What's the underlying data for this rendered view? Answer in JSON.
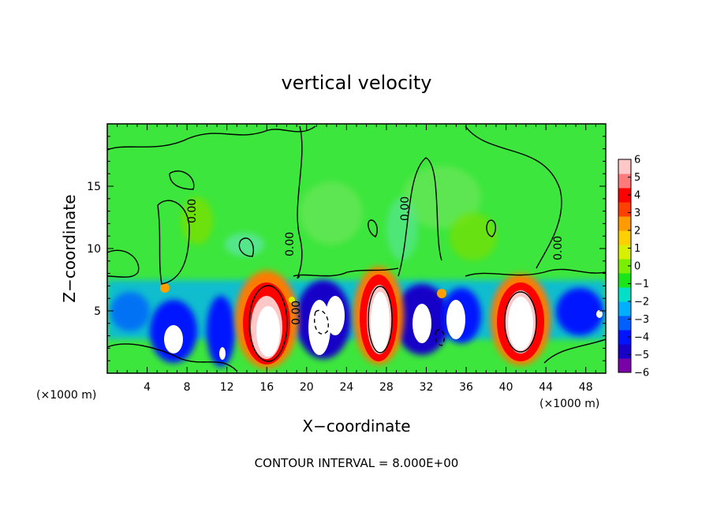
{
  "chart_data": {
    "type": "heatmap",
    "title": "vertical velocity",
    "xlabel": "X−coordinate",
    "ylabel": "Z−coordinate",
    "x_unit_left": "(×1000 m)",
    "x_unit_right": "(×1000 m)",
    "xlim": [
      0,
      50
    ],
    "ylim": [
      0,
      20
    ],
    "x_ticks": [
      4,
      8,
      12,
      16,
      20,
      24,
      28,
      32,
      36,
      40,
      44,
      48
    ],
    "y_ticks": [
      5,
      10,
      15
    ],
    "contour_labels": [
      "0.00",
      "0.00",
      "0.00",
      "0.00",
      "0.00"
    ],
    "footer": "CONTOUR INTERVAL = 8.000E+00",
    "colorbar": {
      "range": [
        -6,
        6
      ],
      "ticks": [
        {
          "value": 6,
          "label": "6"
        },
        {
          "value": 5,
          "label": "5"
        },
        {
          "value": 4,
          "label": "4"
        },
        {
          "value": 3,
          "label": "3"
        },
        {
          "value": 2,
          "label": "2"
        },
        {
          "value": 1,
          "label": "1"
        },
        {
          "value": 0,
          "label": "0"
        },
        {
          "value": -1,
          "label": "−1"
        },
        {
          "value": -2,
          "label": "−2"
        },
        {
          "value": -3,
          "label": "−3"
        },
        {
          "value": -4,
          "label": "−4"
        },
        {
          "value": -5,
          "label": "−5"
        },
        {
          "value": -6,
          "label": "−6"
        }
      ],
      "colors": [
        "#7a00a8",
        "#1800c8",
        "#0014ff",
        "#0060ff",
        "#00b0ff",
        "#00e0c8",
        "#19e619",
        "#7af000",
        "#d8f000",
        "#ffd000",
        "#ff9a00",
        "#ff4000",
        "#ff0000",
        "#ff7a7a",
        "#ffc8c8"
      ]
    },
    "cells": [
      {
        "x": 3,
        "z": 2.5,
        "w": 0.6
      },
      {
        "x": 6.2,
        "z": 2.6,
        "w": -6.5
      },
      {
        "x": 6.2,
        "z": 6.8,
        "w": 2.5
      },
      {
        "x": 10.2,
        "z": 2.8,
        "w": -3.5
      },
      {
        "x": 12,
        "z": 2,
        "w": -6.5
      },
      {
        "x": 12.5,
        "z": 9.5,
        "w": -2.5
      },
      {
        "x": 16,
        "z": 3,
        "w": 7.5
      },
      {
        "x": 19,
        "z": 7.2,
        "w": 1.5
      },
      {
        "x": 21,
        "z": 3.5,
        "w": -6.5
      },
      {
        "x": 23.5,
        "z": 4,
        "w": -6.5
      },
      {
        "x": 27.5,
        "z": 4.3,
        "w": 7.5
      },
      {
        "x": 31,
        "z": 4,
        "w": -6.5
      },
      {
        "x": 33.5,
        "z": 6.5,
        "w": 2.5
      },
      {
        "x": 34,
        "z": 3.2,
        "w": -6.5
      },
      {
        "x": 37,
        "z": 5,
        "w": -3
      },
      {
        "x": 41,
        "z": 3.8,
        "w": 7.5
      },
      {
        "x": 46,
        "z": 4.2,
        "w": -4
      },
      {
        "x": 49.5,
        "z": 4.8,
        "w": -6.5
      },
      {
        "x": 35,
        "z": 10,
        "w": 0.7
      },
      {
        "x": 8,
        "z": 11,
        "w": 0.6
      }
    ]
  }
}
